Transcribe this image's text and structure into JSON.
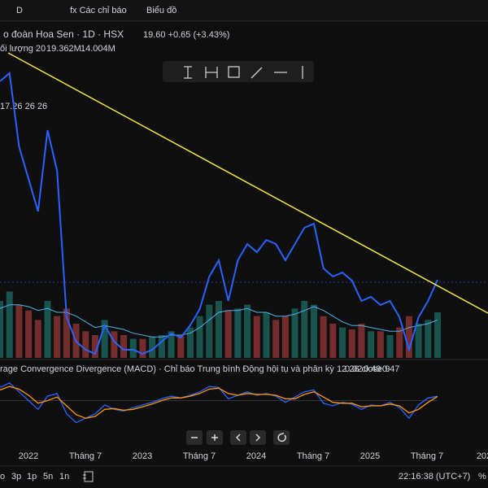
{
  "toolbar": [
    "D",
    "fx Các chỉ báo",
    "Biểu đồ"
  ],
  "header": {
    "symbol": "o đoàn Hoa Sen · 1D · HSX",
    "quote": "19.60 +0.65 (+3.43%)"
  },
  "volume_legend": {
    "label": "ối lượng 20",
    "v1": "19.362M",
    "v2": "14.004M"
  },
  "ma_legend": "17.26 26 26",
  "macd_legend": {
    "label": "rage Convergence Divergence (MACD) · Chỉ báo Trung bình Động hội tụ và phân kỳ 12 26 close 9",
    "v1": "0.02",
    "v2": "0.49",
    "v3": "0.47"
  },
  "timeframes": [
    "o",
    "3p",
    "1p",
    "5n",
    "1n"
  ],
  "clock": "22:16:38 (UTC+7)",
  "pct": "%",
  "chart_data": {
    "type": "line",
    "ylim": [
      10,
      48
    ],
    "series": [
      {
        "color": "#2962ff",
        "values": [
          44,
          45,
          36,
          32,
          28,
          38,
          33,
          15,
          12,
          11,
          10.5,
          14,
          12,
          11,
          11,
          10.5,
          11,
          12,
          13,
          12.5,
          14,
          16,
          20,
          22,
          17,
          22,
          24,
          23,
          24.5,
          24,
          22,
          24,
          26,
          26.5,
          21,
          20,
          20.5,
          19.5,
          17,
          17.5,
          16.5,
          17,
          15,
          11,
          15,
          17,
          19.6
        ]
      }
    ],
    "volume": {
      "ylim": [
        0,
        60
      ],
      "color_up": "#26a69a",
      "color_down": "#ef5350",
      "values": [
        30,
        35,
        28,
        25,
        20,
        30,
        22,
        26,
        18,
        14,
        12,
        20,
        14,
        12,
        10,
        10,
        11,
        12,
        14,
        12,
        16,
        22,
        28,
        30,
        25,
        26,
        28,
        22,
        24,
        20,
        22,
        26,
        30,
        28,
        22,
        18,
        16,
        15,
        18,
        14,
        14,
        12,
        16,
        22,
        18,
        20,
        24
      ],
      "ma": {
        "color": "#4fb0e8",
        "values": [
          26,
          28,
          28,
          27,
          25,
          26,
          24,
          24,
          22,
          19,
          16,
          17,
          16,
          15,
          13,
          12,
          11,
          11,
          12,
          12,
          13,
          16,
          20,
          24,
          25,
          25,
          26,
          24,
          24,
          22,
          22,
          23,
          25,
          27,
          25,
          22,
          19,
          17,
          17,
          16,
          15,
          14,
          14,
          16,
          17,
          18,
          20
        ]
      }
    },
    "macd": {
      "ylim": [
        -3,
        3
      ],
      "series": [
        {
          "color": "#2962ff",
          "values": [
            1.5,
            2,
            1,
            0,
            -1,
            0.5,
            0.8,
            -1.5,
            -2.5,
            -2,
            -1.5,
            -0.5,
            -1,
            -1.2,
            -0.8,
            -0.5,
            -0.2,
            0.2,
            0.5,
            0.3,
            0.6,
            1,
            1.6,
            1.5,
            0.2,
            0.6,
            1,
            0.6,
            0.8,
            0.5,
            -0.2,
            0.4,
            1,
            1.2,
            -0.3,
            -0.6,
            -0.2,
            -0.4,
            -1,
            -0.5,
            -0.6,
            -0.2,
            -0.8,
            -2,
            -0.5,
            0.3,
            0.49
          ]
        },
        {
          "color": "#ff9800",
          "values": [
            1.2,
            1.6,
            1.3,
            0.6,
            -0.3,
            0,
            0.4,
            -0.6,
            -1.6,
            -2,
            -1.8,
            -1,
            -0.9,
            -1.1,
            -1,
            -0.7,
            -0.4,
            0,
            0.3,
            0.3,
            0.5,
            0.8,
            1.3,
            1.4,
            0.8,
            0.6,
            0.8,
            0.7,
            0.7,
            0.6,
            0.2,
            0.2,
            0.7,
            1,
            0.4,
            -0.2,
            -0.3,
            -0.3,
            -0.7,
            -0.6,
            -0.6,
            -0.4,
            -0.6,
            -1.4,
            -1,
            -0.2,
            0.47
          ]
        }
      ]
    },
    "x_labels": [
      "2022",
      "Tháng 7",
      "2023",
      "Tháng 7",
      "2024",
      "Tháng 7",
      "2025",
      "Tháng 7",
      "202"
    ]
  }
}
